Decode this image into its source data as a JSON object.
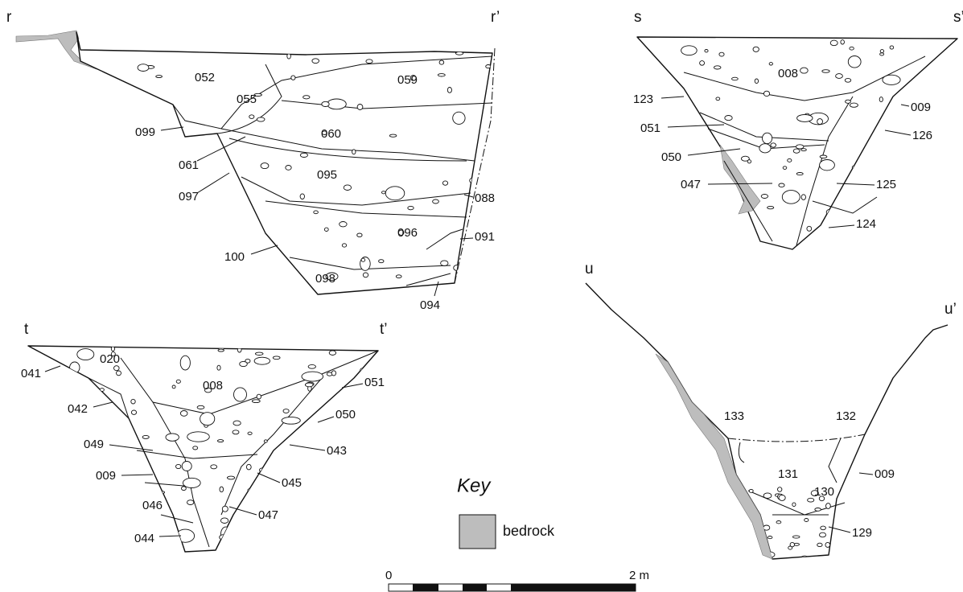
{
  "sections": [
    {
      "start": "r",
      "end": "r’",
      "layers": [
        "052",
        "055",
        "059",
        "099",
        "060",
        "061",
        "097",
        "095",
        "088",
        "096",
        "091",
        "100",
        "098",
        "094"
      ]
    },
    {
      "start": "s",
      "end": "s’",
      "layers": [
        "008",
        "123",
        "009",
        "051",
        "126",
        "050",
        "047",
        "125",
        "124"
      ]
    },
    {
      "start": "t",
      "end": "t’",
      "layers": [
        "020",
        "041",
        "008",
        "051",
        "042",
        "050",
        "049",
        "043",
        "009",
        "045",
        "046",
        "047",
        "044"
      ]
    },
    {
      "start": "u",
      "end": "u’",
      "layers": [
        "133",
        "132",
        "131",
        "009",
        "130",
        "129"
      ]
    }
  ],
  "key": {
    "title": "Key",
    "items": [
      {
        "label": "bedrock"
      }
    ]
  },
  "scale": {
    "start": "0",
    "end": "2 m"
  }
}
